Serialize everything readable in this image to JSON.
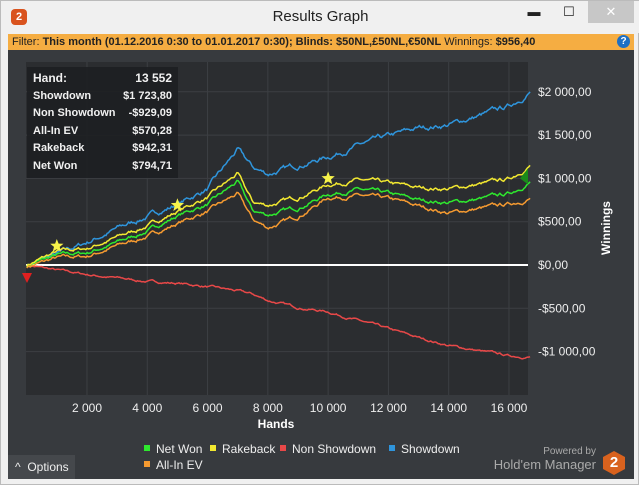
{
  "window": {
    "title": "Results Graph",
    "minimize": "▬",
    "maximize": "☐",
    "close": "✕",
    "logo": "2"
  },
  "filter": {
    "label": "Filter:",
    "value": "This month (01.12.2016 0:30 to 01.01.2017 0:30); Blinds: $50NL,£50NL,€50NL",
    "winnings_label": "Winnings:",
    "winnings_value": "$956,40",
    "help": "?"
  },
  "tooltip": [
    {
      "label": "Hand:",
      "value": "13 552"
    },
    {
      "label": "Showdown",
      "value": "$1 723,80"
    },
    {
      "label": "Non Showdown",
      "value": "-$929,09"
    },
    {
      "label": "All-In EV",
      "value": "$570,28"
    },
    {
      "label": "Rakeback",
      "value": "$942,31"
    },
    {
      "label": "Net Won",
      "value": "$794,71"
    }
  ],
  "legend": [
    {
      "label": "Net Won",
      "color": "#2ee82e"
    },
    {
      "label": "Rakeback",
      "color": "#f2e830"
    },
    {
      "label": "Non Showdown",
      "color": "#e84848"
    },
    {
      "label": "Showdown",
      "color": "#2f95dc"
    },
    {
      "label": "All-In EV",
      "color": "#f59a30"
    }
  ],
  "options_label": "Options",
  "powered_by": "Powered by",
  "brand": "Hold'em Manager",
  "chart_data": {
    "type": "line",
    "xlabel": "Hands",
    "ylabel": "Winnings",
    "xlim": [
      0,
      16700
    ],
    "ylim": [
      -1300,
      2500
    ],
    "xticks": [
      2000,
      4000,
      6000,
      8000,
      10000,
      12000,
      14000,
      16000
    ],
    "xtick_labels": [
      "2 000",
      "4 000",
      "6 000",
      "8 000",
      "10 000",
      "12 000",
      "14 000",
      "16 000"
    ],
    "yticks": [
      -1000,
      -500,
      0,
      500,
      1000,
      1500,
      2000
    ],
    "ytick_labels": [
      "-$1 000,00",
      "-$500,00",
      "$0,00",
      "$500,00",
      "$1 000,00",
      "$1 500,00",
      "$2 000,00"
    ],
    "x": [
      0,
      1000,
      2000,
      3000,
      4000,
      5000,
      6000,
      7000,
      7500,
      8000,
      9000,
      10000,
      11000,
      12000,
      13000,
      14000,
      15000,
      16000,
      16700
    ],
    "series": [
      {
        "name": "Showdown",
        "color": "#2f95dc",
        "values": [
          0,
          120,
          260,
          420,
          560,
          700,
          880,
          1330,
          1120,
          1050,
          1150,
          1250,
          1380,
          1480,
          1580,
          1620,
          1720,
          1830,
          2000
        ]
      },
      {
        "name": "Non Showdown",
        "color": "#e84848",
        "values": [
          0,
          -60,
          -110,
          -150,
          -190,
          -210,
          -250,
          -300,
          -340,
          -410,
          -490,
          -540,
          -640,
          -740,
          -840,
          -930,
          -990,
          -1050,
          -1060
        ]
      },
      {
        "name": "All-In EV",
        "color": "#f59a30",
        "values": [
          -20,
          80,
          100,
          220,
          330,
          480,
          620,
          820,
          520,
          430,
          560,
          780,
          800,
          760,
          680,
          600,
          650,
          700,
          770
        ]
      },
      {
        "name": "Net Won",
        "color": "#2ee82e",
        "values": [
          0,
          110,
          140,
          260,
          390,
          570,
          700,
          960,
          620,
          580,
          660,
          820,
          870,
          820,
          750,
          720,
          760,
          820,
          960
        ]
      },
      {
        "name": "Rakeback",
        "color": "#f2e830",
        "values": [
          0,
          150,
          190,
          320,
          450,
          620,
          780,
          1050,
          720,
          690,
          780,
          930,
          980,
          940,
          890,
          880,
          930,
          990,
          1150
        ]
      }
    ],
    "stars": [
      1000,
      5000,
      10000
    ]
  }
}
